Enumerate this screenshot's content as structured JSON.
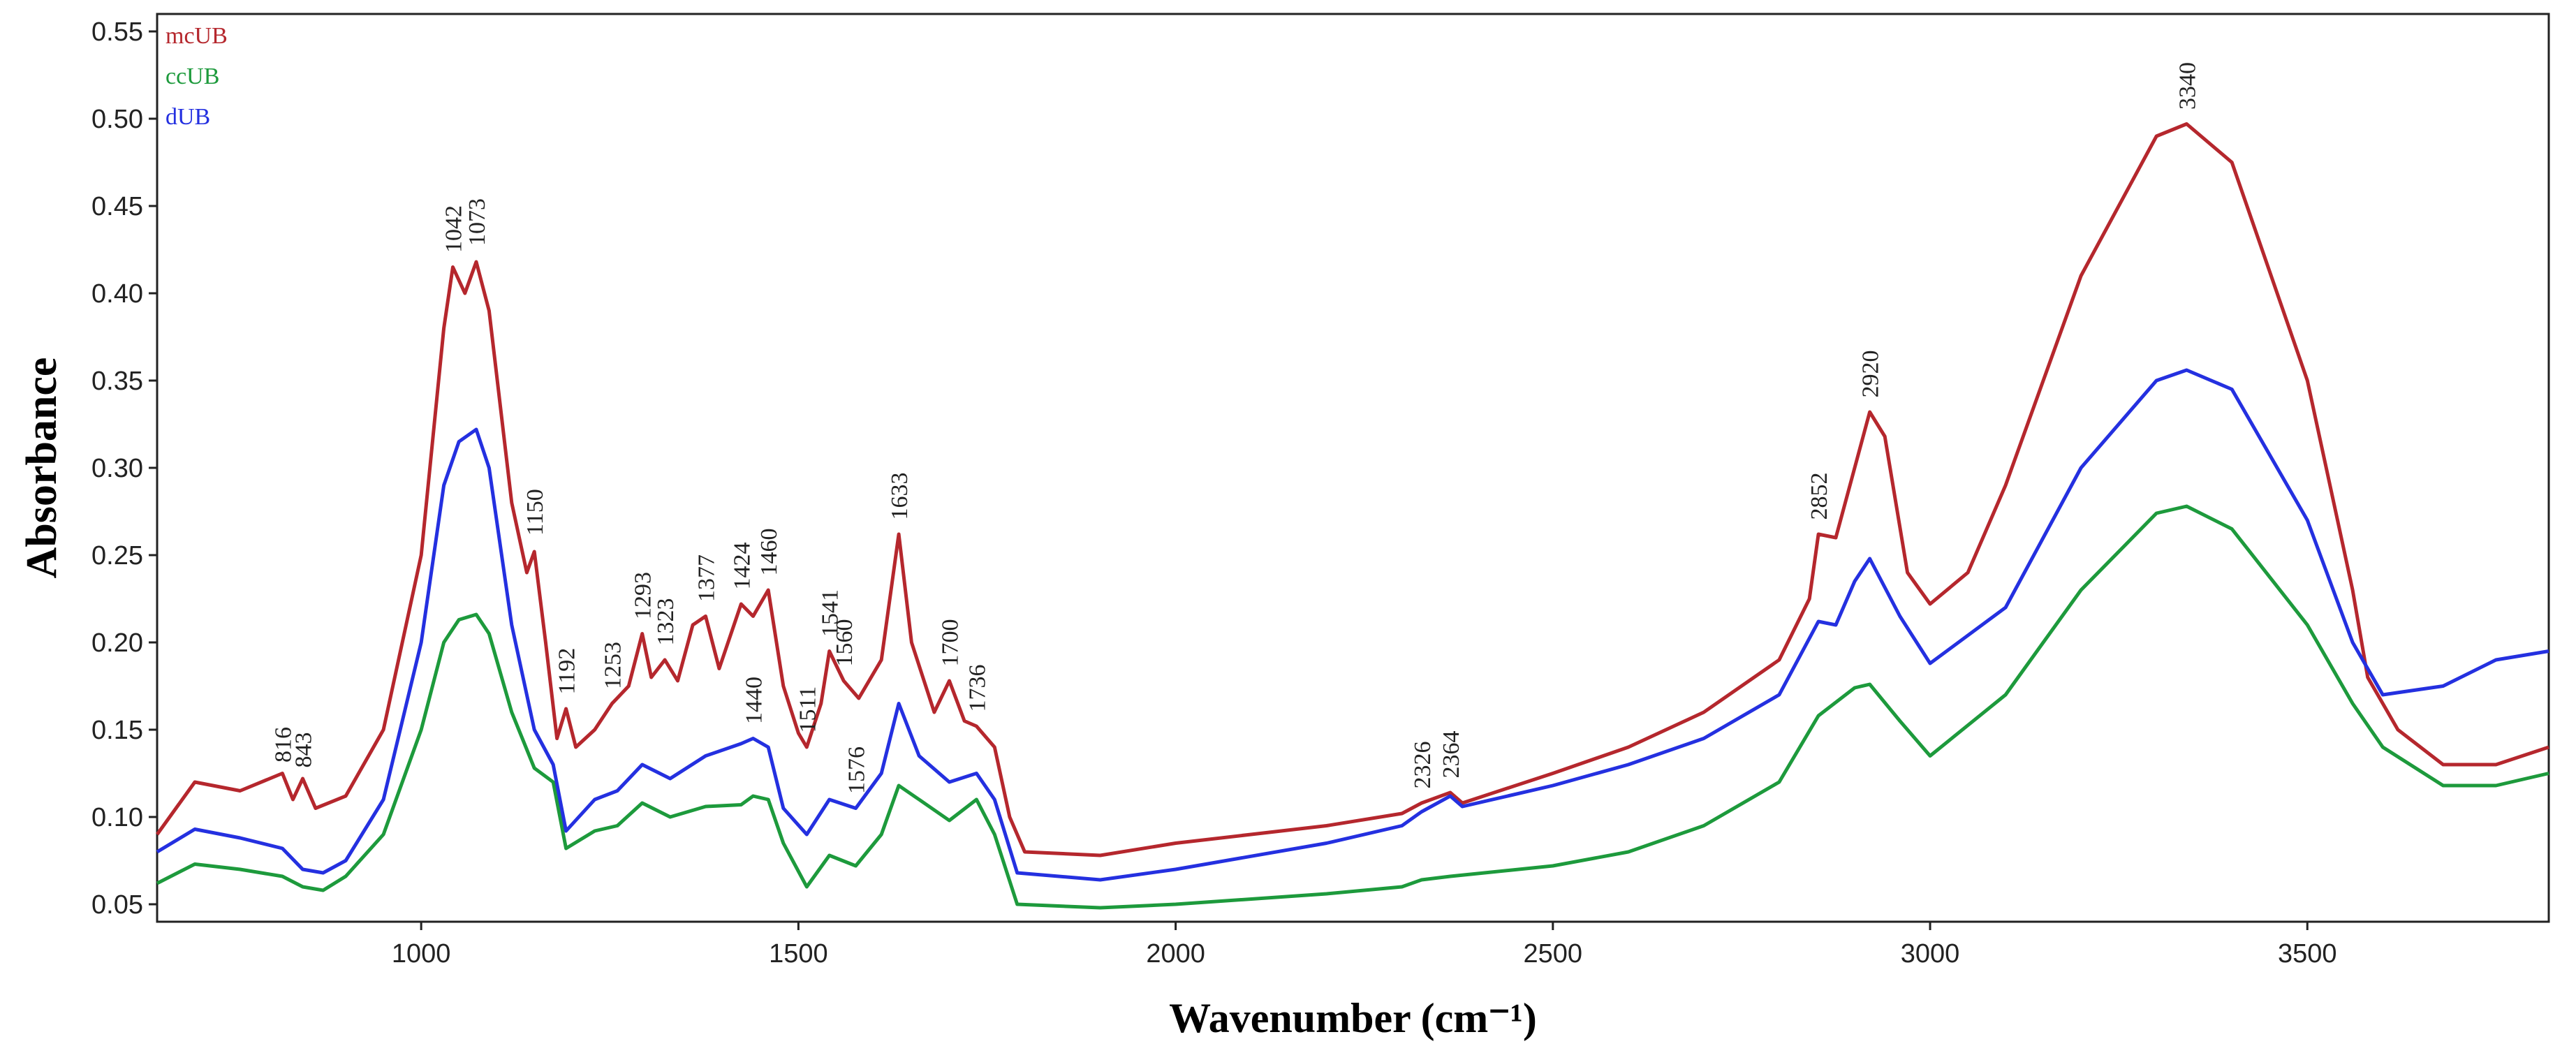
{
  "chart_data": {
    "type": "line",
    "title": "",
    "xlabel": "Wavenumber (cm⁻¹)",
    "ylabel": "Absorbance",
    "xlim": [
      650,
      3820
    ],
    "ylim": [
      0.04,
      0.56
    ],
    "xticks": [
      1000,
      1500,
      2000,
      2500,
      3000,
      3500
    ],
    "yticks": [
      0.05,
      0.1,
      0.15,
      0.2,
      0.25,
      0.3,
      0.35,
      0.4,
      0.45,
      0.5,
      0.55
    ],
    "ytick_labels": [
      "0.05",
      "0.10",
      "0.15",
      "0.20",
      "0.25",
      "0.30",
      "0.35",
      "0.40",
      "0.45",
      "0.50",
      "0.55"
    ],
    "legend_position": "top-left",
    "series": [
      {
        "name": "mcUB",
        "color": "#b5272d",
        "points": [
          [
            650,
            0.09
          ],
          [
            700,
            0.12
          ],
          [
            760,
            0.115
          ],
          [
            816,
            0.125
          ],
          [
            830,
            0.11
          ],
          [
            843,
            0.122
          ],
          [
            860,
            0.105
          ],
          [
            900,
            0.112
          ],
          [
            950,
            0.15
          ],
          [
            1000,
            0.25
          ],
          [
            1030,
            0.38
          ],
          [
            1042,
            0.415
          ],
          [
            1058,
            0.4
          ],
          [
            1073,
            0.418
          ],
          [
            1090,
            0.39
          ],
          [
            1120,
            0.28
          ],
          [
            1140,
            0.24
          ],
          [
            1150,
            0.252
          ],
          [
            1165,
            0.2
          ],
          [
            1180,
            0.145
          ],
          [
            1192,
            0.162
          ],
          [
            1205,
            0.14
          ],
          [
            1230,
            0.15
          ],
          [
            1253,
            0.165
          ],
          [
            1275,
            0.175
          ],
          [
            1293,
            0.205
          ],
          [
            1305,
            0.18
          ],
          [
            1323,
            0.19
          ],
          [
            1340,
            0.178
          ],
          [
            1360,
            0.21
          ],
          [
            1377,
            0.215
          ],
          [
            1395,
            0.185
          ],
          [
            1424,
            0.222
          ],
          [
            1440,
            0.215
          ],
          [
            1460,
            0.23
          ],
          [
            1480,
            0.175
          ],
          [
            1500,
            0.148
          ],
          [
            1511,
            0.14
          ],
          [
            1530,
            0.165
          ],
          [
            1541,
            0.195
          ],
          [
            1560,
            0.178
          ],
          [
            1580,
            0.168
          ],
          [
            1610,
            0.19
          ],
          [
            1633,
            0.262
          ],
          [
            1650,
            0.2
          ],
          [
            1680,
            0.16
          ],
          [
            1700,
            0.178
          ],
          [
            1720,
            0.155
          ],
          [
            1736,
            0.152
          ],
          [
            1760,
            0.14
          ],
          [
            1780,
            0.1
          ],
          [
            1800,
            0.08
          ],
          [
            1900,
            0.078
          ],
          [
            2000,
            0.085
          ],
          [
            2100,
            0.09
          ],
          [
            2200,
            0.095
          ],
          [
            2300,
            0.102
          ],
          [
            2326,
            0.108
          ],
          [
            2364,
            0.114
          ],
          [
            2380,
            0.108
          ],
          [
            2500,
            0.125
          ],
          [
            2600,
            0.14
          ],
          [
            2700,
            0.16
          ],
          [
            2800,
            0.19
          ],
          [
            2840,
            0.225
          ],
          [
            2852,
            0.262
          ],
          [
            2875,
            0.26
          ],
          [
            2900,
            0.3
          ],
          [
            2920,
            0.332
          ],
          [
            2940,
            0.318
          ],
          [
            2970,
            0.24
          ],
          [
            3000,
            0.222
          ],
          [
            3050,
            0.24
          ],
          [
            3100,
            0.29
          ],
          [
            3200,
            0.41
          ],
          [
            3300,
            0.49
          ],
          [
            3340,
            0.497
          ],
          [
            3400,
            0.475
          ],
          [
            3500,
            0.35
          ],
          [
            3560,
            0.23
          ],
          [
            3580,
            0.18
          ],
          [
            3620,
            0.15
          ],
          [
            3680,
            0.13
          ],
          [
            3750,
            0.13
          ],
          [
            3820,
            0.14
          ]
        ]
      },
      {
        "name": "ccUB",
        "color": "#1d9a3c",
        "points": [
          [
            650,
            0.062
          ],
          [
            700,
            0.073
          ],
          [
            760,
            0.07
          ],
          [
            816,
            0.066
          ],
          [
            843,
            0.06
          ],
          [
            870,
            0.058
          ],
          [
            900,
            0.066
          ],
          [
            950,
            0.09
          ],
          [
            1000,
            0.15
          ],
          [
            1030,
            0.2
          ],
          [
            1050,
            0.213
          ],
          [
            1073,
            0.216
          ],
          [
            1090,
            0.205
          ],
          [
            1120,
            0.16
          ],
          [
            1150,
            0.128
          ],
          [
            1175,
            0.12
          ],
          [
            1192,
            0.082
          ],
          [
            1230,
            0.092
          ],
          [
            1260,
            0.095
          ],
          [
            1293,
            0.108
          ],
          [
            1330,
            0.1
          ],
          [
            1377,
            0.106
          ],
          [
            1424,
            0.107
          ],
          [
            1440,
            0.112
          ],
          [
            1460,
            0.11
          ],
          [
            1480,
            0.085
          ],
          [
            1511,
            0.06
          ],
          [
            1541,
            0.078
          ],
          [
            1576,
            0.072
          ],
          [
            1610,
            0.09
          ],
          [
            1633,
            0.118
          ],
          [
            1660,
            0.11
          ],
          [
            1700,
            0.098
          ],
          [
            1736,
            0.11
          ],
          [
            1760,
            0.09
          ],
          [
            1790,
            0.05
          ],
          [
            1900,
            0.048
          ],
          [
            2000,
            0.05
          ],
          [
            2200,
            0.056
          ],
          [
            2300,
            0.06
          ],
          [
            2326,
            0.064
          ],
          [
            2364,
            0.066
          ],
          [
            2500,
            0.072
          ],
          [
            2600,
            0.08
          ],
          [
            2700,
            0.095
          ],
          [
            2800,
            0.12
          ],
          [
            2852,
            0.158
          ],
          [
            2900,
            0.174
          ],
          [
            2920,
            0.176
          ],
          [
            2960,
            0.155
          ],
          [
            3000,
            0.135
          ],
          [
            3100,
            0.17
          ],
          [
            3200,
            0.23
          ],
          [
            3300,
            0.274
          ],
          [
            3340,
            0.278
          ],
          [
            3400,
            0.265
          ],
          [
            3500,
            0.21
          ],
          [
            3560,
            0.165
          ],
          [
            3600,
            0.14
          ],
          [
            3680,
            0.118
          ],
          [
            3750,
            0.118
          ],
          [
            3820,
            0.125
          ]
        ]
      },
      {
        "name": "dUB",
        "color": "#2430e0",
        "points": [
          [
            650,
            0.08
          ],
          [
            700,
            0.093
          ],
          [
            760,
            0.088
          ],
          [
            816,
            0.082
          ],
          [
            843,
            0.07
          ],
          [
            870,
            0.068
          ],
          [
            900,
            0.075
          ],
          [
            950,
            0.11
          ],
          [
            1000,
            0.2
          ],
          [
            1030,
            0.29
          ],
          [
            1050,
            0.315
          ],
          [
            1073,
            0.322
          ],
          [
            1090,
            0.3
          ],
          [
            1120,
            0.21
          ],
          [
            1150,
            0.15
          ],
          [
            1175,
            0.13
          ],
          [
            1192,
            0.092
          ],
          [
            1230,
            0.11
          ],
          [
            1260,
            0.115
          ],
          [
            1293,
            0.13
          ],
          [
            1330,
            0.122
          ],
          [
            1377,
            0.135
          ],
          [
            1424,
            0.142
          ],
          [
            1440,
            0.145
          ],
          [
            1460,
            0.14
          ],
          [
            1480,
            0.105
          ],
          [
            1511,
            0.09
          ],
          [
            1541,
            0.11
          ],
          [
            1576,
            0.105
          ],
          [
            1610,
            0.125
          ],
          [
            1633,
            0.165
          ],
          [
            1660,
            0.135
          ],
          [
            1700,
            0.12
          ],
          [
            1736,
            0.125
          ],
          [
            1760,
            0.11
          ],
          [
            1790,
            0.068
          ],
          [
            1900,
            0.064
          ],
          [
            2000,
            0.07
          ],
          [
            2200,
            0.085
          ],
          [
            2300,
            0.095
          ],
          [
            2326,
            0.103
          ],
          [
            2364,
            0.112
          ],
          [
            2380,
            0.106
          ],
          [
            2500,
            0.118
          ],
          [
            2600,
            0.13
          ],
          [
            2700,
            0.145
          ],
          [
            2800,
            0.17
          ],
          [
            2852,
            0.212
          ],
          [
            2875,
            0.21
          ],
          [
            2900,
            0.235
          ],
          [
            2920,
            0.248
          ],
          [
            2960,
            0.215
          ],
          [
            3000,
            0.188
          ],
          [
            3100,
            0.22
          ],
          [
            3200,
            0.3
          ],
          [
            3300,
            0.35
          ],
          [
            3340,
            0.356
          ],
          [
            3400,
            0.345
          ],
          [
            3500,
            0.27
          ],
          [
            3560,
            0.2
          ],
          [
            3600,
            0.17
          ],
          [
            3680,
            0.175
          ],
          [
            3750,
            0.19
          ],
          [
            3820,
            0.195
          ]
        ]
      }
    ],
    "peak_labels": [
      {
        "text": "816",
        "x": 816,
        "y": 0.128,
        "color": "#222"
      },
      {
        "text": "843",
        "x": 843,
        "y": 0.125,
        "color": "#222"
      },
      {
        "text": "1042",
        "x": 1042,
        "y": 0.42,
        "color": "#222"
      },
      {
        "text": "1073",
        "x": 1073,
        "y": 0.424,
        "color": "#222"
      },
      {
        "text": "1150",
        "x": 1150,
        "y": 0.258,
        "color": "#222"
      },
      {
        "text": "1192",
        "x": 1192,
        "y": 0.167,
        "color": "#222"
      },
      {
        "text": "1253",
        "x": 1253,
        "y": 0.17,
        "color": "#222"
      },
      {
        "text": "1293",
        "x": 1293,
        "y": 0.21,
        "color": "#222"
      },
      {
        "text": "1323",
        "x": 1323,
        "y": 0.195,
        "color": "#222"
      },
      {
        "text": "1377",
        "x": 1377,
        "y": 0.22,
        "color": "#222"
      },
      {
        "text": "1424",
        "x": 1424,
        "y": 0.227,
        "color": "#222"
      },
      {
        "text": "1460",
        "x": 1460,
        "y": 0.235,
        "color": "#222"
      },
      {
        "text": "1440",
        "x": 1440,
        "y": 0.15,
        "color": "#222"
      },
      {
        "text": "1511",
        "x": 1511,
        "y": 0.145,
        "color": "#222"
      },
      {
        "text": "1541",
        "x": 1541,
        "y": 0.2,
        "color": "#222"
      },
      {
        "text": "1560",
        "x": 1560,
        "y": 0.183,
        "color": "#222"
      },
      {
        "text": "1576",
        "x": 1576,
        "y": 0.11,
        "color": "#222"
      },
      {
        "text": "1633",
        "x": 1633,
        "y": 0.267,
        "color": "#222"
      },
      {
        "text": "1700",
        "x": 1700,
        "y": 0.183,
        "color": "#222"
      },
      {
        "text": "1736",
        "x": 1736,
        "y": 0.157,
        "color": "#222"
      },
      {
        "text": "2326",
        "x": 2326,
        "y": 0.113,
        "color": "#222"
      },
      {
        "text": "2364",
        "x": 2364,
        "y": 0.119,
        "color": "#222"
      },
      {
        "text": "2852",
        "x": 2852,
        "y": 0.267,
        "color": "#222"
      },
      {
        "text": "2920",
        "x": 2920,
        "y": 0.337,
        "color": "#222"
      },
      {
        "text": "3340",
        "x": 3340,
        "y": 0.502,
        "color": "#222"
      }
    ]
  }
}
